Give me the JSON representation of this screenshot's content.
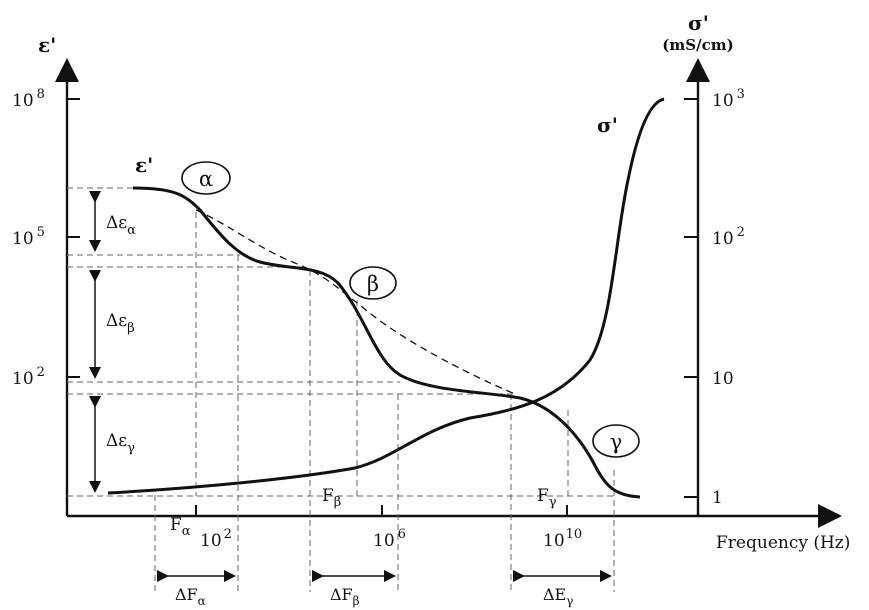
{
  "left_axis": {
    "title": "ε'",
    "ticks": [
      {
        "base": "10",
        "exp": "8"
      },
      {
        "base": "10",
        "exp": "5"
      },
      {
        "base": "10",
        "exp": "2"
      }
    ]
  },
  "right_axis": {
    "title": "σ'",
    "unit": "(mS/cm)",
    "ticks": [
      {
        "base": "10",
        "exp": "3"
      },
      {
        "base": "10",
        "exp": "2"
      },
      {
        "base": "10",
        "exp": ""
      },
      {
        "base": "1",
        "exp": ""
      }
    ]
  },
  "x_axis": {
    "title": "Frequency (Hz)",
    "ticks": [
      {
        "base": "10",
        "exp": "2"
      },
      {
        "base": "10",
        "exp": "6"
      },
      {
        "base": "10",
        "exp": "10"
      }
    ]
  },
  "curve_labels": {
    "epsilon": "ε'",
    "sigma": "σ'"
  },
  "regions": {
    "alpha": "α",
    "beta": "β",
    "gamma": "γ"
  },
  "delta_epsilon": [
    {
      "symbol": "Δε",
      "sub": "α"
    },
    {
      "symbol": "Δε",
      "sub": "β"
    },
    {
      "symbol": "Δε",
      "sub": "γ"
    }
  ],
  "freq_markers": [
    {
      "symbol": "F",
      "sub": "α"
    },
    {
      "symbol": "F",
      "sub": "β"
    },
    {
      "symbol": "F",
      "sub": "γ"
    }
  ],
  "delta_f": [
    {
      "symbol": "ΔF",
      "sub": "α"
    },
    {
      "symbol": "ΔF",
      "sub": "β"
    },
    {
      "symbol": "ΔE",
      "sub": "γ"
    }
  ]
}
